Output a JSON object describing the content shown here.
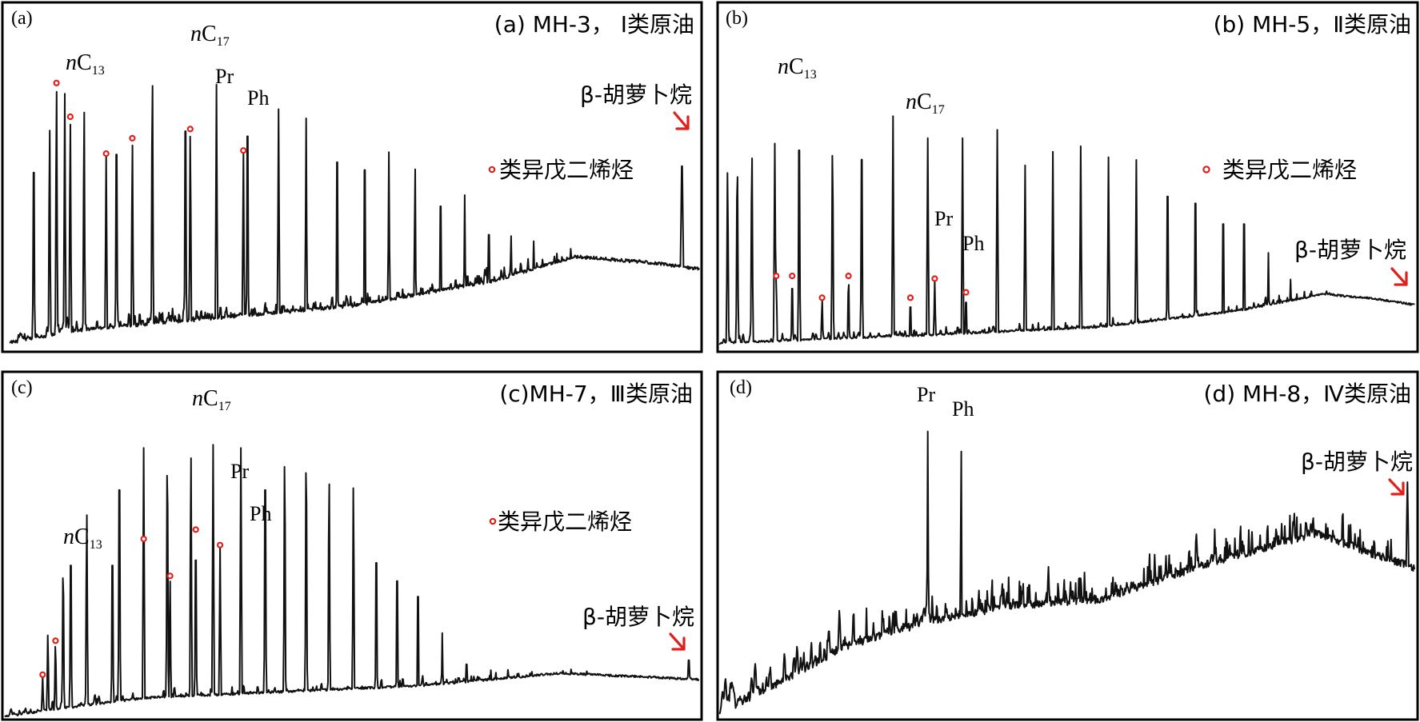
{
  "chart_data": [
    {
      "id": "a",
      "type": "line",
      "panel_label": "(a)",
      "title": "(a) MH-3， Ⅰ类原油",
      "legend": "类异戊二烯烃",
      "beta_label": "β-胡萝卜烷",
      "peak_labels": [
        {
          "key": "nC13",
          "italic": "n",
          "main": "C",
          "sub": "13"
        },
        {
          "key": "nC17",
          "italic": "n",
          "main": "C",
          "sub": "17"
        },
        {
          "key": "Pr",
          "main": "Pr"
        },
        {
          "key": "Ph",
          "main": "Ph"
        }
      ],
      "baseline": [
        [
          0.0,
          0.02
        ],
        [
          0.1,
          0.06
        ],
        [
          0.3,
          0.1
        ],
        [
          0.5,
          0.14
        ],
        [
          0.7,
          0.22
        ],
        [
          0.82,
          0.3
        ],
        [
          0.93,
          0.28
        ],
        [
          1.0,
          0.26
        ]
      ],
      "n_alkanes": [
        [
          0.035,
          0.68
        ],
        [
          0.058,
          0.73
        ],
        [
          0.08,
          0.83
        ],
        [
          0.108,
          0.79
        ],
        [
          0.155,
          0.75
        ],
        [
          0.207,
          0.91
        ],
        [
          0.255,
          0.84
        ],
        [
          0.3,
          0.86
        ],
        [
          0.345,
          0.82
        ],
        [
          0.39,
          0.78
        ],
        [
          0.43,
          0.75
        ],
        [
          0.475,
          0.72
        ],
        [
          0.515,
          0.69
        ],
        [
          0.55,
          0.64
        ],
        [
          0.588,
          0.6
        ],
        [
          0.625,
          0.55
        ],
        [
          0.66,
          0.5
        ],
        [
          0.695,
          0.44
        ],
        [
          0.727,
          0.39
        ],
        [
          0.76,
          0.35
        ],
        [
          0.79,
          0.3
        ],
        [
          0.82,
          0.26
        ],
        [
          0.85,
          0.21
        ],
        [
          0.88,
          0.16
        ]
      ],
      "isoprenoids": [
        [
          0.068,
          0.86
        ],
        [
          0.088,
          0.75
        ],
        [
          0.14,
          0.63
        ],
        [
          0.178,
          0.68
        ],
        [
          0.262,
          0.71
        ],
        [
          0.339,
          0.64
        ]
      ],
      "extra_peaks": [
        [
          0.975,
          0.62
        ],
        [
          0.94,
          0.23
        ]
      ],
      "noise_amp": 0.03,
      "noise_density": 0.9,
      "noise_end": 0.82,
      "seed": 11
    },
    {
      "id": "b",
      "type": "line",
      "panel_label": "(b)",
      "title": "(b) MH-5，Ⅱ类原油",
      "legend": "类异戊二烯烃",
      "beta_label": "β-胡萝卜烷",
      "peak_labels": [
        {
          "key": "nC13",
          "italic": "n",
          "main": "C",
          "sub": "13"
        },
        {
          "key": "nC17",
          "italic": "n",
          "main": "C",
          "sub": "17"
        },
        {
          "key": "Pr",
          "main": "Pr"
        },
        {
          "key": "Ph",
          "main": "Ph"
        }
      ],
      "baseline": [
        [
          0.0,
          0.02
        ],
        [
          0.1,
          0.03
        ],
        [
          0.3,
          0.05
        ],
        [
          0.55,
          0.08
        ],
        [
          0.75,
          0.14
        ],
        [
          0.87,
          0.2
        ],
        [
          0.95,
          0.18
        ],
        [
          1.0,
          0.16
        ]
      ],
      "n_alkanes": [
        [
          0.012,
          0.66
        ],
        [
          0.026,
          0.7
        ],
        [
          0.047,
          0.74
        ],
        [
          0.08,
          0.75
        ],
        [
          0.115,
          0.86
        ],
        [
          0.163,
          0.75
        ],
        [
          0.205,
          0.82
        ],
        [
          0.25,
          0.85
        ],
        [
          0.3,
          0.77
        ],
        [
          0.35,
          0.77
        ],
        [
          0.4,
          0.8
        ],
        [
          0.44,
          0.67
        ],
        [
          0.48,
          0.72
        ],
        [
          0.52,
          0.74
        ],
        [
          0.56,
          0.7
        ],
        [
          0.6,
          0.69
        ],
        [
          0.645,
          0.66
        ],
        [
          0.685,
          0.63
        ],
        [
          0.725,
          0.54
        ],
        [
          0.755,
          0.54
        ],
        [
          0.79,
          0.35
        ],
        [
          0.822,
          0.26
        ],
        [
          0.85,
          0.2
        ],
        [
          0.878,
          0.14
        ]
      ],
      "isoprenoids": [
        [
          0.082,
          0.26
        ],
        [
          0.105,
          0.26
        ],
        [
          0.148,
          0.18
        ],
        [
          0.186,
          0.26
        ],
        [
          0.275,
          0.18
        ],
        [
          0.31,
          0.25
        ],
        [
          0.355,
          0.2
        ]
      ],
      "extra_peaks": [
        [
          0.99,
          0.1
        ]
      ],
      "noise_amp": 0.02,
      "noise_density": 0.7,
      "noise_end": 0.9,
      "seed": 23
    },
    {
      "id": "c",
      "type": "line",
      "panel_label": "(c)",
      "title": "(c)MH-7，Ⅲ类原油",
      "legend": "类异戊二烯烃",
      "beta_label": "β-胡萝卜烷",
      "peak_labels": [
        {
          "key": "nC13",
          "italic": "n",
          "main": "C",
          "sub": "13"
        },
        {
          "key": "nC17",
          "italic": "n",
          "main": "C",
          "sub": "17"
        },
        {
          "key": "Pr",
          "main": "Pr"
        },
        {
          "key": "Ph",
          "main": "Ph"
        }
      ],
      "baseline": [
        [
          0.0,
          0.0
        ],
        [
          0.06,
          0.02
        ],
        [
          0.2,
          0.06
        ],
        [
          0.4,
          0.08
        ],
        [
          0.6,
          0.1
        ],
        [
          0.8,
          0.14
        ],
        [
          0.9,
          0.13
        ],
        [
          1.0,
          0.12
        ]
      ],
      "n_alkanes": [
        [
          0.062,
          0.27
        ],
        [
          0.084,
          0.5
        ],
        [
          0.095,
          0.58
        ],
        [
          0.118,
          0.67
        ],
        [
          0.155,
          0.58
        ],
        [
          0.165,
          0.87
        ],
        [
          0.2,
          0.87
        ],
        [
          0.234,
          0.87
        ],
        [
          0.268,
          0.86
        ],
        [
          0.3,
          0.88
        ],
        [
          0.34,
          0.87
        ],
        [
          0.375,
          0.87
        ],
        [
          0.403,
          0.86
        ],
        [
          0.434,
          0.88
        ],
        [
          0.467,
          0.8
        ],
        [
          0.502,
          0.76
        ],
        [
          0.535,
          0.59
        ],
        [
          0.565,
          0.52
        ],
        [
          0.595,
          0.46
        ],
        [
          0.63,
          0.27
        ],
        [
          0.665,
          0.2
        ],
        [
          0.7,
          0.15
        ],
        [
          0.74,
          0.12
        ]
      ],
      "isoprenoids": [
        [
          0.0545,
          0.13
        ],
        [
          0.073,
          0.24
        ],
        [
          0.2,
          0.57
        ],
        [
          0.238,
          0.45
        ],
        [
          0.275,
          0.6
        ],
        [
          0.31,
          0.55
        ]
      ],
      "extra_peaks": [
        [
          0.985,
          0.19
        ],
        [
          0.76,
          0.07
        ],
        [
          0.8,
          0.07
        ],
        [
          0.85,
          0.08
        ],
        [
          0.88,
          0.07
        ]
      ],
      "noise_amp": 0.02,
      "noise_density": 0.6,
      "noise_end": 0.85,
      "seed": 37
    },
    {
      "id": "d",
      "type": "line",
      "panel_label": "(d)",
      "title": "(d) MH-8，Ⅳ类原油",
      "legend": "",
      "beta_label": "β-胡萝卜烷",
      "peak_labels": [
        {
          "key": "Pr",
          "main": "Pr"
        },
        {
          "key": "Ph",
          "main": "Ph"
        }
      ],
      "baseline": [
        [
          0.0,
          0.01
        ],
        [
          0.08,
          0.1
        ],
        [
          0.18,
          0.22
        ],
        [
          0.3,
          0.3
        ],
        [
          0.42,
          0.35
        ],
        [
          0.55,
          0.37
        ],
        [
          0.7,
          0.48
        ],
        [
          0.86,
          0.58
        ],
        [
          0.93,
          0.52
        ],
        [
          1.0,
          0.47
        ]
      ],
      "n_alkanes": [
        [
          0.3,
          0.9
        ],
        [
          0.348,
          0.86
        ]
      ],
      "isoprenoids": [],
      "extra_peaks": [
        [
          0.99,
          0.74
        ],
        [
          0.18,
          0.22
        ],
        [
          0.2,
          0.12
        ],
        [
          0.38,
          0.1
        ],
        [
          0.97,
          0.08
        ],
        [
          0.9,
          0.06
        ]
      ],
      "noise_amp": 0.07,
      "noise_density": 1.3,
      "noise_end": 0.97,
      "seed": 53
    }
  ]
}
